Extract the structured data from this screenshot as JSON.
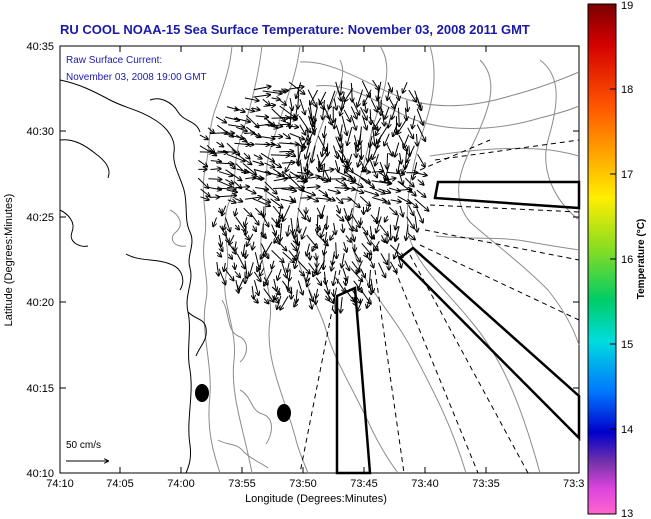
{
  "title": "RU COOL  NOAA-15  Sea Surface Temperature:  November 03, 2008 2011 GMT",
  "overlay": {
    "line1": "Raw Surface Current:",
    "line2": "November 03, 2008 19:00 GMT"
  },
  "scale_label": "50 cm/s",
  "axes": {
    "xlabel": "Longitude (Degrees:Minutes)",
    "ylabel": "Latitude (Degrees:Minutes)",
    "xticks": [
      "74:10",
      "74:05",
      "74:00",
      "73:55",
      "73:50",
      "73:45",
      "73:40",
      "73:35",
      "73:3"
    ],
    "yticks": [
      "40:35",
      "40:30",
      "40:25",
      "40:20",
      "40:15",
      "40:10"
    ]
  },
  "colorbar": {
    "label": "Temperature (°C)",
    "ticks": [
      "19",
      "18",
      "17",
      "16",
      "15",
      "14",
      "13"
    ]
  },
  "colors": {
    "title": "#1a1aa8",
    "land_outline": "#000000",
    "bathymetry": "#888888"
  }
}
